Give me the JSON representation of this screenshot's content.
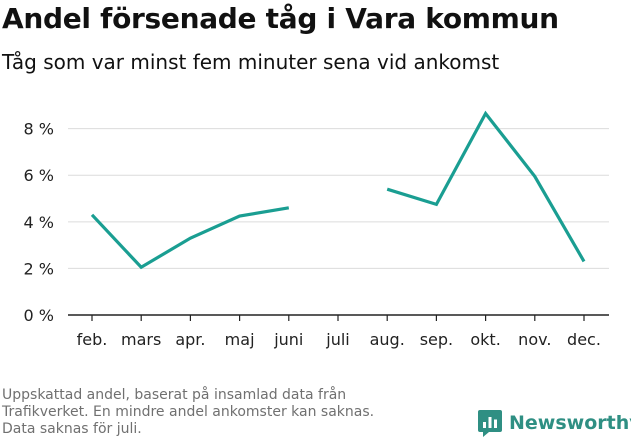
{
  "header": {
    "title": "Andel försenade tåg i Vara kommun",
    "subtitle": "Tåg som var minst fem minuter sena vid ankomst"
  },
  "chart_data": {
    "type": "line",
    "categories": [
      "feb.",
      "mars",
      "apr.",
      "maj",
      "juni",
      "juli",
      "aug.",
      "sep.",
      "okt.",
      "nov.",
      "dec."
    ],
    "series": [
      {
        "values": [
          4.3,
          2.05,
          3.3,
          4.25,
          4.6,
          null,
          5.4,
          4.75,
          8.65,
          5.95,
          2.3
        ],
        "color": "#1a9e92"
      }
    ],
    "y_ticks": [
      0,
      2,
      4,
      6,
      8
    ],
    "y_tick_labels": [
      "0 %",
      "2 %",
      "4 %",
      "6 %",
      "8 %"
    ],
    "ylim": [
      0,
      8.8
    ],
    "grid": true,
    "xlabel": "",
    "ylabel": ""
  },
  "footnote": {
    "lines": [
      "Uppskattad andel, baserat på insamlad data från",
      "Trafikverket. En mindre andel ankomster kan saknas.",
      "Data saknas för juli."
    ]
  },
  "brand": {
    "name": "Newsworthy",
    "icon": "newsworthy-logo-icon",
    "color": "#2f8f83"
  }
}
